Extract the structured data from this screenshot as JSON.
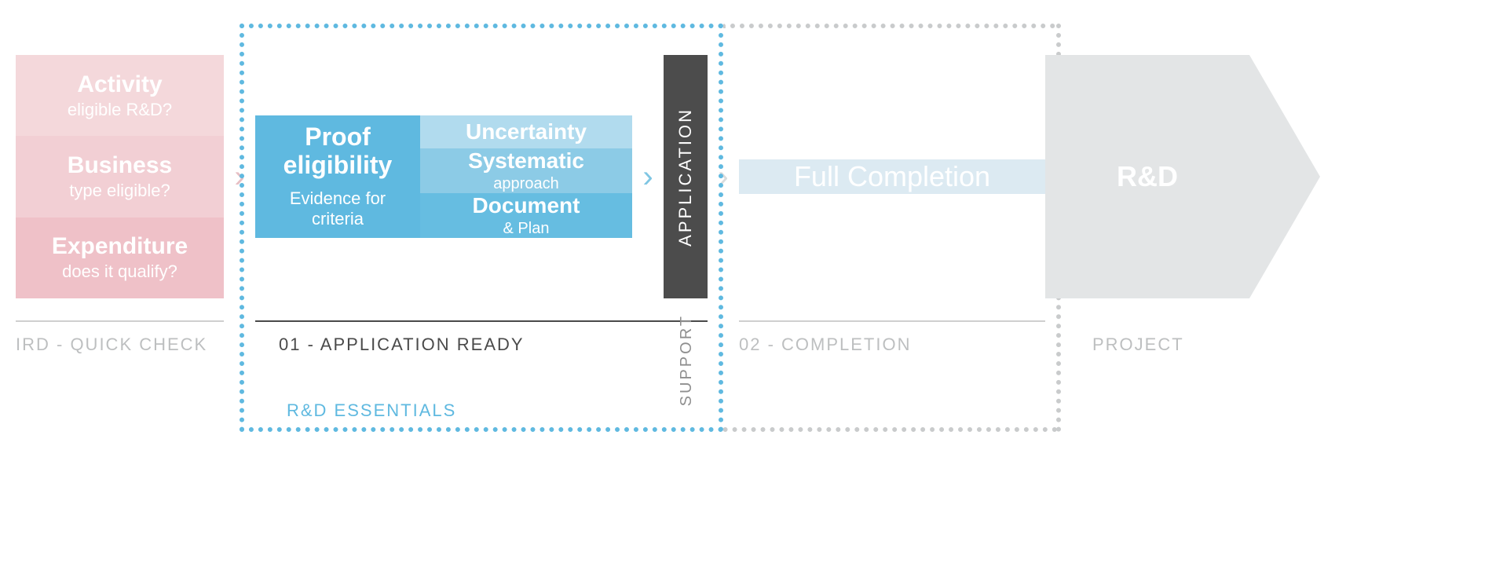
{
  "colors": {
    "pink_light": "#f4d8db",
    "pink_med": "#f2cfd4",
    "pink_dark": "#efc1c8",
    "pink_chevron": "#e7bfc4",
    "blue_main": "#5fb9e0",
    "blue_light": "#b1dbee",
    "blue_med": "#8ccbe6",
    "blue_dark": "#66bde1",
    "blue_chevron": "#7fc6e3",
    "app_bar": "#4c4c4c",
    "grey_chevron": "#d9dcdd",
    "full_bg": "#dceaf2",
    "rd_bg": "#e3e5e6",
    "underline_grey": "#cfcfcf",
    "underline_dark": "#4a4a4a",
    "label_grey": "#bdbfc0",
    "label_dark": "#4a4a4a",
    "support_grey": "#8f8f8f",
    "essentials_blue": "#5fb9e0",
    "dotted_blue": "#5fb9e0",
    "dotted_grey": "#c9cbcc"
  },
  "stage1": {
    "cells": [
      {
        "title": "Activity",
        "sub": "eligible R&D?"
      },
      {
        "title": "Business",
        "sub": "type eligible?"
      },
      {
        "title": "Expenditure",
        "sub": "does it qualify?"
      }
    ],
    "label": "IRD - QUICK CHECK"
  },
  "stage2": {
    "left": {
      "title": "Proof eligibility",
      "sub": "Evidence for criteria"
    },
    "right": [
      {
        "title": "Uncertainty",
        "sub": ""
      },
      {
        "title": "Systematic",
        "sub": "approach"
      },
      {
        "title": "Document",
        "sub": "& Plan"
      }
    ],
    "label": "01 - APPLICATION READY"
  },
  "app_bar": "APPLICATION",
  "support": "SUPPORT",
  "stage3": {
    "title": "Full Completion",
    "label": "02 - COMPLETION"
  },
  "stage4": {
    "title": "R&D",
    "label": "PROJECT"
  },
  "essentials": "R&D ESSENTIALS"
}
